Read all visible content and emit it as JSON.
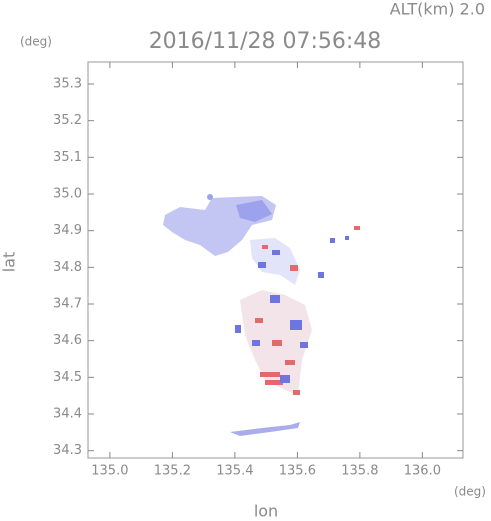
{
  "chart_data": {
    "type": "map",
    "title": "2016/11/28 07:56:48",
    "annotation": "ALT(km) 2.0",
    "x_label": "lon",
    "y_label": "lat",
    "x_unit": "(deg)",
    "y_unit": "(deg)",
    "xlim": [
      134.93,
      136.13
    ],
    "ylim": [
      34.28,
      35.36
    ],
    "xticks": [
      {
        "value": 135.0,
        "label": "135.0"
      },
      135.2,
      135.4,
      135.6,
      135.8,
      {
        "value": 136.0,
        "label": "136.0"
      }
    ],
    "yticks": [
      34.3,
      34.4,
      34.5,
      34.6,
      34.7,
      34.8,
      34.9,
      {
        "value": 35.0,
        "label": "35.0"
      },
      35.1,
      35.2,
      35.3
    ],
    "color": "#888888"
  }
}
